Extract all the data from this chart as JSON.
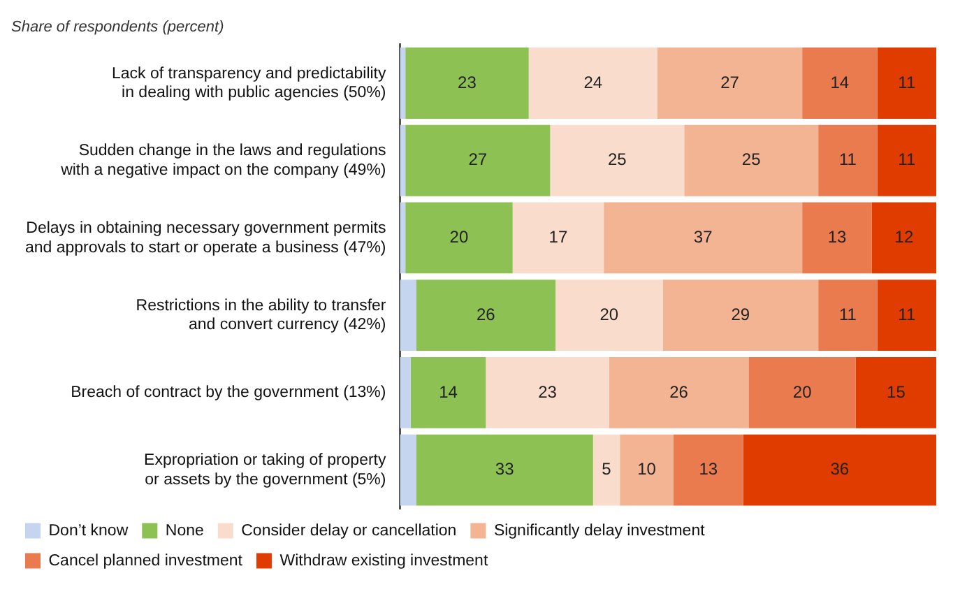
{
  "chart_data": {
    "type": "bar",
    "orientation": "horizontal",
    "stacked": true,
    "title": "Share of respondents (percent)",
    "categories": [
      "Lack of transparency and predictability\nin dealing with public agencies (50%)",
      "Sudden change in the laws and regulations\nwith a negative impact on the company (49%)",
      "Delays in obtaining necessary government permits\nand approvals to start or operate a business (47%)",
      "Restrictions in the ability to transfer\nand convert currency (42%)",
      "Breach of contract by the government (13%)",
      "Expropriation or taking of property\nor assets by the government (5%)"
    ],
    "series": [
      {
        "name": "Don’t know",
        "color": "#c5d5f0",
        "values": [
          1,
          1,
          1,
          3,
          2,
          3
        ],
        "value_labels": [
          null,
          null,
          null,
          null,
          null,
          null
        ]
      },
      {
        "name": "None",
        "color": "#8dc153",
        "values": [
          23,
          27,
          20,
          26,
          14,
          33
        ],
        "value_labels": [
          "23",
          "27",
          "20",
          "26",
          "14",
          "33"
        ]
      },
      {
        "name": "Consider delay or cancellation",
        "color": "#f9dccb",
        "values": [
          24,
          25,
          17,
          20,
          23,
          5
        ],
        "value_labels": [
          "24",
          "25",
          "17",
          "20",
          "23",
          "5"
        ]
      },
      {
        "name": "Significantly delay investment",
        "color": "#f2b493",
        "values": [
          27,
          25,
          37,
          29,
          26,
          10
        ],
        "value_labels": [
          "27",
          "25",
          "37",
          "29",
          "26",
          "10"
        ]
      },
      {
        "name": "Cancel planned investment",
        "color": "#e97b4f",
        "values": [
          14,
          11,
          13,
          11,
          20,
          13
        ],
        "value_labels": [
          "14",
          "11",
          "13",
          "11",
          "20",
          "13"
        ]
      },
      {
        "name": "Withdraw existing investment",
        "color": "#e03c00",
        "values": [
          11,
          11,
          12,
          11,
          15,
          36
        ],
        "value_labels": [
          "11",
          "11",
          "12",
          "11",
          "15",
          "36"
        ]
      }
    ],
    "xlim": [
      0,
      100
    ],
    "tick_labels": "y",
    "grid": false,
    "legend": "bottom"
  }
}
